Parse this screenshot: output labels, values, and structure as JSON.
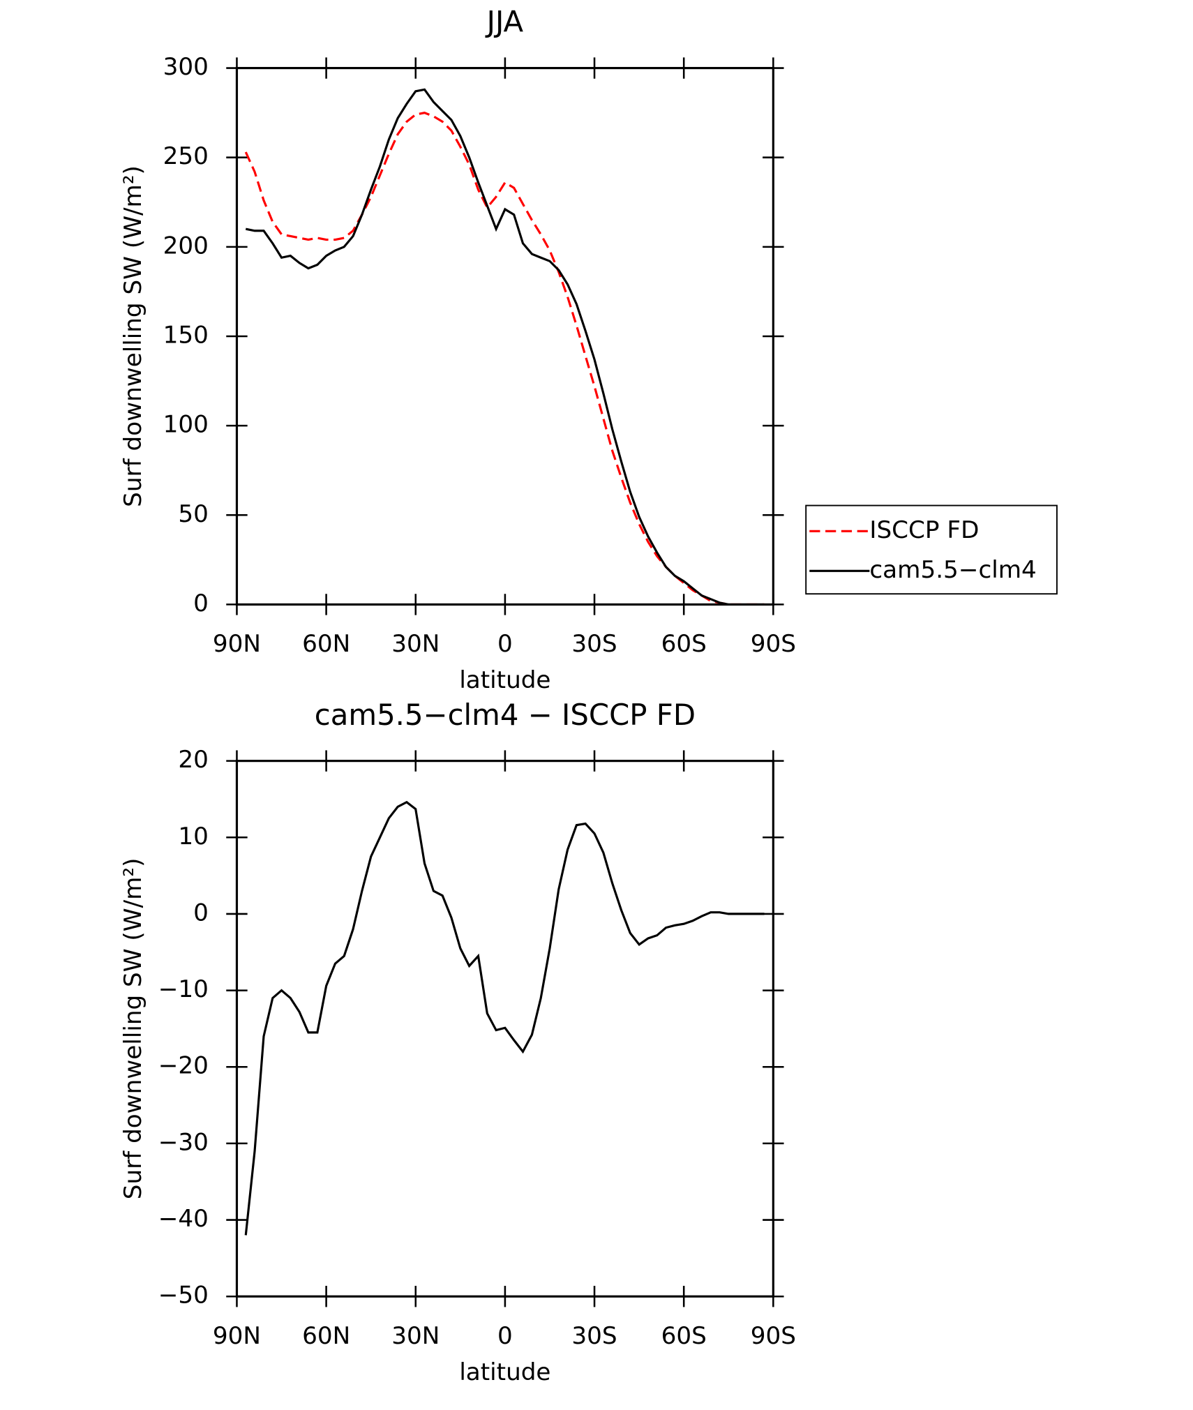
{
  "chart_data": [
    {
      "type": "line",
      "title": "JJA",
      "xlabel": "latitude",
      "ylabel": "Surf downwelling SW (W/m²)",
      "x": [
        87,
        84,
        81,
        78,
        75,
        72,
        69,
        66,
        63,
        60,
        57,
        54,
        51,
        48,
        45,
        42,
        39,
        36,
        33,
        30,
        27,
        24,
        21,
        18,
        15,
        12,
        9,
        6,
        3,
        0,
        -3,
        -6,
        -9,
        -12,
        -15,
        -18,
        -21,
        -24,
        -27,
        -30,
        -33,
        -36,
        -39,
        -42,
        -45,
        -48,
        -51,
        -54,
        -57,
        -60,
        -63,
        -66,
        -69,
        -72,
        -75,
        -78,
        -81,
        -84,
        -87
      ],
      "xlim": [
        90,
        -90
      ],
      "xticks": [
        {
          "value": 90,
          "label": "90N"
        },
        {
          "value": 60,
          "label": "60N"
        },
        {
          "value": 30,
          "label": "30N"
        },
        0,
        {
          "value": -30,
          "label": "30S"
        },
        {
          "value": -60,
          "label": "60S"
        },
        {
          "value": -90,
          "label": "90S"
        }
      ],
      "ylim": [
        0,
        300
      ],
      "yticks": [
        0,
        50,
        100,
        150,
        200,
        250,
        300
      ],
      "legend": "right",
      "series": [
        {
          "name": "ISCCP FD",
          "color": "#ff0000",
          "dash": true,
          "values": [
            253,
            242,
            226,
            214,
            207,
            206,
            205,
            204,
            205,
            204,
            204,
            205,
            209,
            218,
            228,
            240,
            252,
            263,
            270,
            274,
            275,
            273,
            270,
            265,
            256,
            246,
            232,
            222,
            228,
            236,
            233,
            224,
            215,
            207,
            198,
            186,
            172,
            156,
            139,
            122,
            104,
            86,
            71,
            57,
            45,
            35,
            27,
            21,
            16,
            12,
            8,
            5,
            2,
            1,
            0,
            0,
            0,
            0,
            0
          ]
        },
        {
          "name": "cam5.5−clm4",
          "color": "#000000",
          "dash": false,
          "values": [
            210,
            209,
            209,
            202,
            194,
            195,
            191,
            188,
            190,
            195,
            198,
            200,
            206,
            218,
            232,
            245,
            260,
            272,
            280,
            287,
            288,
            281,
            276,
            271,
            262,
            250,
            236,
            223,
            210,
            221,
            218,
            202,
            196,
            194,
            192,
            187,
            179,
            168,
            153,
            137,
            118,
            98,
            80,
            63,
            49,
            38,
            29,
            21,
            16,
            13,
            9,
            5,
            3,
            1,
            0,
            0,
            0,
            0,
            0
          ]
        }
      ]
    },
    {
      "type": "line",
      "title": "cam5.5−clm4 − ISCCP FD",
      "xlabel": "latitude",
      "ylabel": "Surf downwelling SW (W/m²)",
      "x": [
        87,
        84,
        81,
        78,
        75,
        72,
        69,
        66,
        63,
        60,
        57,
        54,
        51,
        48,
        45,
        42,
        39,
        36,
        33,
        30,
        27,
        24,
        21,
        18,
        15,
        12,
        9,
        6,
        3,
        0,
        -3,
        -6,
        -9,
        -12,
        -15,
        -18,
        -21,
        -24,
        -27,
        -30,
        -33,
        -36,
        -39,
        -42,
        -45,
        -48,
        -51,
        -54,
        -57,
        -60,
        -63,
        -66,
        -69,
        -72,
        -75,
        -78,
        -81,
        -84,
        -87
      ],
      "xlim": [
        90,
        -90
      ],
      "xticks": [
        {
          "value": 90,
          "label": "90N"
        },
        {
          "value": 60,
          "label": "60N"
        },
        {
          "value": 30,
          "label": "30N"
        },
        0,
        {
          "value": -30,
          "label": "30S"
        },
        {
          "value": -60,
          "label": "60S"
        },
        {
          "value": -90,
          "label": "90S"
        }
      ],
      "ylim": [
        -50,
        20
      ],
      "yticks": [
        {
          "value": -50,
          "label": "−50"
        },
        {
          "value": -40,
          "label": "−40"
        },
        {
          "value": -30,
          "label": "−30"
        },
        {
          "value": -20,
          "label": "−20"
        },
        {
          "value": -10,
          "label": "−10"
        },
        0,
        10,
        20
      ],
      "series": [
        {
          "color": "#000000",
          "dash": false,
          "values": [
            -42,
            -31,
            -16,
            -11,
            -10,
            -11,
            -12.8,
            -15.5,
            -15.5,
            -9.4,
            -6.5,
            -5.5,
            -2,
            3,
            7.5,
            10,
            12.5,
            14,
            14.6,
            13.7,
            6.6,
            3,
            2.4,
            -0.5,
            -4.5,
            -6.8,
            -5.5,
            -13,
            -15.2,
            -14.9,
            -16.5,
            -18,
            -15.8,
            -11,
            -4.5,
            3.2,
            8.4,
            11.6,
            11.8,
            10.5,
            8,
            4,
            0.5,
            -2.5,
            -4,
            -3.2,
            -2.8,
            -1.8,
            -1.5,
            -1.3,
            -0.9,
            -0.3,
            0.2,
            0.2,
            0,
            0,
            0,
            0,
            0
          ]
        }
      ]
    }
  ]
}
